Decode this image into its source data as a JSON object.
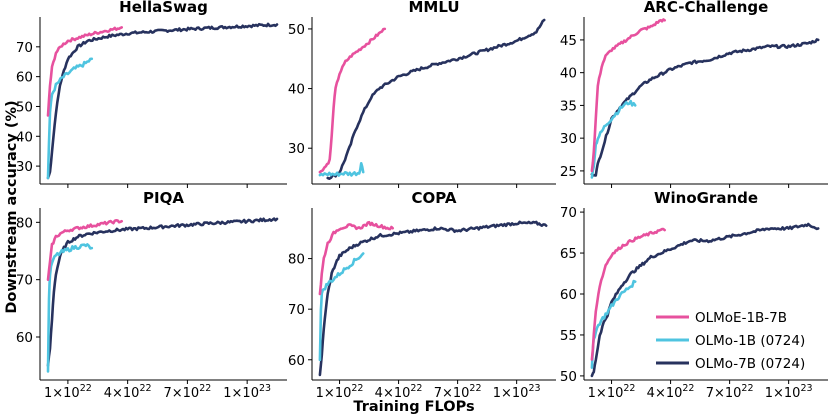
{
  "figure": {
    "ylabel": "Downstream accuracy (%)",
    "xlabel": "Training FLOPs"
  },
  "legend": [
    {
      "name": "OLMoE-1B-7B",
      "color": "#e7519e"
    },
    {
      "name": "OLMo-1B (0724)",
      "color": "#4fc4e0"
    },
    {
      "name": "OLMo-7B (0724)",
      "color": "#27325e"
    }
  ],
  "x_ticks": [
    {
      "value": 1e+22,
      "mant": "1",
      "exp": "22"
    },
    {
      "value": 4e+22,
      "mant": "4",
      "exp": "22"
    },
    {
      "value": 7e+22,
      "mant": "7",
      "exp": "22"
    },
    {
      "value": 1e+23,
      "mant": "1",
      "exp": "23"
    }
  ],
  "chart_data": [
    {
      "type": "line",
      "title": "HellaSwag",
      "xlabel": "Training FLOPs",
      "ylabel": "Downstream accuracy (%)",
      "xlim": [
        -4e+21,
        1.2e+23
      ],
      "ylim": [
        24,
        80
      ],
      "yticks": [
        30,
        40,
        50,
        60,
        70
      ],
      "series": [
        {
          "name": "OLMoE-1B-7B",
          "x": [
            0,
            1e+21,
            2e+21,
            4e+21,
            7e+21,
            1e+22,
            1.5e+22,
            2e+22,
            2.5e+22,
            3e+22,
            3.5e+22,
            3.7e+22
          ],
          "values": [
            47,
            57,
            63,
            68,
            70.5,
            72,
            73,
            74,
            74.8,
            75.5,
            76.2,
            76.5
          ]
        },
        {
          "name": "OLMo-1B (0724)",
          "x": [
            0,
            5e+20,
            1e+21,
            2e+21,
            4e+21,
            7e+21,
            1e+22,
            1.3e+22,
            1.6e+22,
            1.9e+22,
            2.2e+22
          ],
          "values": [
            26,
            38,
            48,
            54,
            57,
            59.5,
            61,
            62.5,
            63.5,
            64.5,
            66
          ]
        },
        {
          "name": "OLMo-7B (0724)",
          "x": [
            0,
            1e+21,
            2e+21,
            4e+21,
            6e+21,
            8e+21,
            1e+22,
            1.5e+22,
            2e+22,
            3e+22,
            4e+22,
            5e+22,
            6e+22,
            8e+22,
            1e+23,
            1.15e+23
          ],
          "values": [
            26,
            28,
            35,
            48,
            57,
            62,
            66,
            70,
            72,
            73.5,
            74.5,
            75,
            75.5,
            76.3,
            77,
            77.5
          ]
        }
      ]
    },
    {
      "type": "line",
      "title": "MMLU",
      "xlabel": "Training FLOPs",
      "ylabel": "Downstream accuracy (%)",
      "xlim": [
        -4e+21,
        1.2e+23
      ],
      "ylim": [
        24,
        52
      ],
      "yticks": [
        30,
        40,
        50
      ],
      "series": [
        {
          "name": "OLMoE-1B-7B",
          "x": [
            0,
            3e+21,
            5e+21,
            6e+21,
            7e+21,
            8e+21,
            1e+22,
            1.3e+22,
            1.6e+22,
            2e+22,
            2.5e+22,
            3e+22,
            3.3e+22
          ],
          "values": [
            26,
            27,
            28,
            32,
            37,
            40,
            42.5,
            44.5,
            45.5,
            46.5,
            47.8,
            49.2,
            50
          ]
        },
        {
          "name": "OLMo-1B (0724)",
          "x": [
            0,
            4e+21,
            8e+21,
            1.2e+22,
            1.6e+22,
            2e+22,
            2.1e+22,
            2.2e+22
          ],
          "values": [
            25.5,
            25.7,
            25.6,
            25.8,
            25.7,
            25.9,
            27.5,
            26
          ]
        },
        {
          "name": "OLMo-7B (0724)",
          "x": [
            4e+21,
            8e+21,
            1e+22,
            1.2e+22,
            1.5e+22,
            1.8e+22,
            2.2e+22,
            2.6e+22,
            3e+22,
            4e+22,
            5e+22,
            6e+22,
            7e+22,
            8e+22,
            9e+22,
            1e+23,
            1.1e+23,
            1.14e+23
          ],
          "values": [
            25,
            25.5,
            26,
            27.5,
            30,
            33,
            36,
            38.5,
            40,
            42,
            43.2,
            44.2,
            45,
            46,
            47,
            48,
            49.5,
            51.5
          ]
        }
      ]
    },
    {
      "type": "line",
      "title": "ARC-Challenge",
      "xlabel": "Training FLOPs",
      "ylabel": "Downstream accuracy (%)",
      "xlim": [
        -4e+21,
        1.2e+23
      ],
      "ylim": [
        23,
        48.5
      ],
      "yticks": [
        25,
        30,
        35,
        40,
        45
      ],
      "series": [
        {
          "name": "OLMoE-1B-7B",
          "x": [
            0,
            1e+21,
            2e+21,
            3e+21,
            5e+21,
            7e+21,
            1e+22,
            1.5e+22,
            2e+22,
            2.5e+22,
            3e+22,
            3.5e+22,
            3.7e+22
          ],
          "values": [
            25,
            28,
            33,
            38,
            41,
            42.5,
            43.5,
            44.5,
            45.5,
            46.5,
            47,
            48,
            48
          ]
        },
        {
          "name": "OLMo-1B (0724)",
          "x": [
            0,
            1e+21,
            2e+21,
            3e+21,
            5e+21,
            7e+21,
            1e+22,
            1.3e+22,
            1.6e+22,
            1.9e+22,
            2.2e+22
          ],
          "values": [
            24,
            26,
            29,
            30,
            31,
            32,
            33,
            34,
            35,
            35.5,
            35
          ]
        },
        {
          "name": "OLMo-7B (0724)",
          "x": [
            0,
            2e+21,
            3e+21,
            5e+21,
            8e+21,
            1e+22,
            1.5e+22,
            2e+22,
            2.5e+22,
            3e+22,
            4e+22,
            5e+22,
            6e+22,
            7e+22,
            8e+22,
            9e+22,
            1e+23,
            1.1e+23,
            1.15e+23
          ],
          "values": [
            24.5,
            24.5,
            26,
            28,
            31,
            33,
            35,
            36.5,
            38,
            39,
            40.5,
            41.5,
            42,
            43,
            43.5,
            44,
            44,
            44.5,
            45
          ]
        }
      ]
    },
    {
      "type": "line",
      "title": "PIQA",
      "xlabel": "Training FLOPs",
      "ylabel": "Downstream accuracy (%)",
      "xlim": [
        -4e+21,
        1.2e+23
      ],
      "ylim": [
        52.5,
        82.5
      ],
      "yticks": [
        60,
        70,
        80
      ],
      "series": [
        {
          "name": "OLMoE-1B-7B",
          "x": [
            0,
            1e+21,
            2e+21,
            4e+21,
            7e+21,
            1e+22,
            1.5e+22,
            2e+22,
            2.5e+22,
            3e+22,
            3.5e+22,
            3.7e+22
          ],
          "values": [
            70,
            73,
            76,
            77.5,
            78.2,
            78.6,
            79,
            79.3,
            79.6,
            79.9,
            80.2,
            80.2
          ]
        },
        {
          "name": "OLMo-1B (0724)",
          "x": [
            0,
            5e+20,
            1e+21,
            2e+21,
            4e+21,
            7e+21,
            1e+22,
            1.3e+22,
            1.6e+22,
            1.9e+22,
            2.2e+22
          ],
          "values": [
            54,
            67,
            71,
            73,
            74.2,
            74.8,
            75.2,
            75.6,
            75.8,
            76,
            75.5
          ]
        },
        {
          "name": "OLMo-7B (0724)",
          "x": [
            0,
            1e+21,
            2e+21,
            3e+21,
            4e+21,
            6e+21,
            8e+21,
            1e+22,
            1.5e+22,
            2e+22,
            3e+22,
            4e+22,
            5e+22,
            6e+22,
            8e+22,
            1e+23,
            1.15e+23
          ],
          "values": [
            55,
            58,
            63,
            68,
            71,
            74,
            75.5,
            76.5,
            77.5,
            78,
            78.5,
            78.8,
            79,
            79.3,
            79.8,
            80.2,
            80.6
          ]
        }
      ]
    },
    {
      "type": "line",
      "title": "COPA",
      "xlabel": "Training FLOPs",
      "ylabel": "Downstream accuracy (%)",
      "xlim": [
        -4e+21,
        1.2e+23
      ],
      "ylim": [
        56,
        90
      ],
      "yticks": [
        60,
        70,
        80
      ],
      "series": [
        {
          "name": "OLMoE-1B-7B",
          "x": [
            0,
            1e+21,
            2e+21,
            4e+21,
            7e+21,
            1e+22,
            1.5e+22,
            2e+22,
            2.5e+22,
            3e+22,
            3.5e+22,
            3.7e+22
          ],
          "values": [
            73,
            77,
            80,
            83,
            85,
            86,
            86.5,
            86,
            87,
            86.5,
            86,
            86
          ]
        },
        {
          "name": "OLMo-1B (0724)",
          "x": [
            0,
            5e+20,
            1e+21,
            2e+21,
            4e+21,
            7e+21,
            1e+22,
            1.3e+22,
            1.6e+22,
            1.9e+22,
            2.2e+22
          ],
          "values": [
            60,
            70,
            73,
            74,
            75,
            76,
            77,
            78,
            79,
            80,
            81
          ]
        },
        {
          "name": "OLMo-7B (0724)",
          "x": [
            0,
            1e+21,
            2e+21,
            3e+21,
            4e+21,
            6e+21,
            8e+21,
            1e+22,
            1.5e+22,
            2e+22,
            3e+22,
            4e+22,
            5e+22,
            6e+22,
            7e+22,
            8e+22,
            9e+22,
            1e+23,
            1.1e+23,
            1.15e+23
          ],
          "values": [
            57,
            61,
            66,
            70,
            73,
            77,
            79,
            80.5,
            82,
            83,
            84.5,
            85,
            85.5,
            86,
            85.5,
            86,
            86.5,
            87,
            87,
            86.5
          ]
        }
      ]
    },
    {
      "type": "line",
      "title": "WinoGrande",
      "xlabel": "Training FLOPs",
      "ylabel": "Downstream accuracy (%)",
      "xlim": [
        -4e+21,
        1.2e+23
      ],
      "ylim": [
        49.5,
        70.5
      ],
      "yticks": [
        50,
        55,
        60,
        65,
        70
      ],
      "series": [
        {
          "name": "OLMoE-1B-7B",
          "x": [
            0,
            1e+21,
            2e+21,
            4e+21,
            7e+21,
            1e+22,
            1.5e+22,
            2e+22,
            2.5e+22,
            3e+22,
            3.5e+22,
            3.7e+22
          ],
          "values": [
            52,
            55,
            58,
            61,
            63.5,
            64.8,
            65.8,
            66.5,
            67,
            67.4,
            67.8,
            67.8
          ]
        },
        {
          "name": "OLMo-1B (0724)",
          "x": [
            0,
            5e+20,
            1e+21,
            2e+21,
            4e+21,
            7e+21,
            1e+22,
            1.3e+22,
            1.6e+22,
            1.9e+22,
            2.2e+22
          ],
          "values": [
            51,
            53,
            54.5,
            55.5,
            56.5,
            57.5,
            58.5,
            59.5,
            60.2,
            60.8,
            61.5
          ]
        },
        {
          "name": "OLMo-7B (0724)",
          "x": [
            0,
            1e+21,
            2e+21,
            3e+21,
            4e+21,
            6e+21,
            8e+21,
            1e+22,
            1.5e+22,
            2e+22,
            2.5e+22,
            3e+22,
            4e+22,
            5e+22,
            6e+22,
            7e+22,
            8e+22,
            9e+22,
            1e+23,
            1.1e+23,
            1.15e+23
          ],
          "values": [
            50,
            50.5,
            52,
            53.5,
            55,
            56.5,
            57.5,
            59,
            61,
            62.5,
            63.5,
            64.5,
            65.5,
            66.5,
            66.5,
            67,
            67.5,
            68,
            68,
            68.5,
            68
          ]
        }
      ]
    }
  ]
}
